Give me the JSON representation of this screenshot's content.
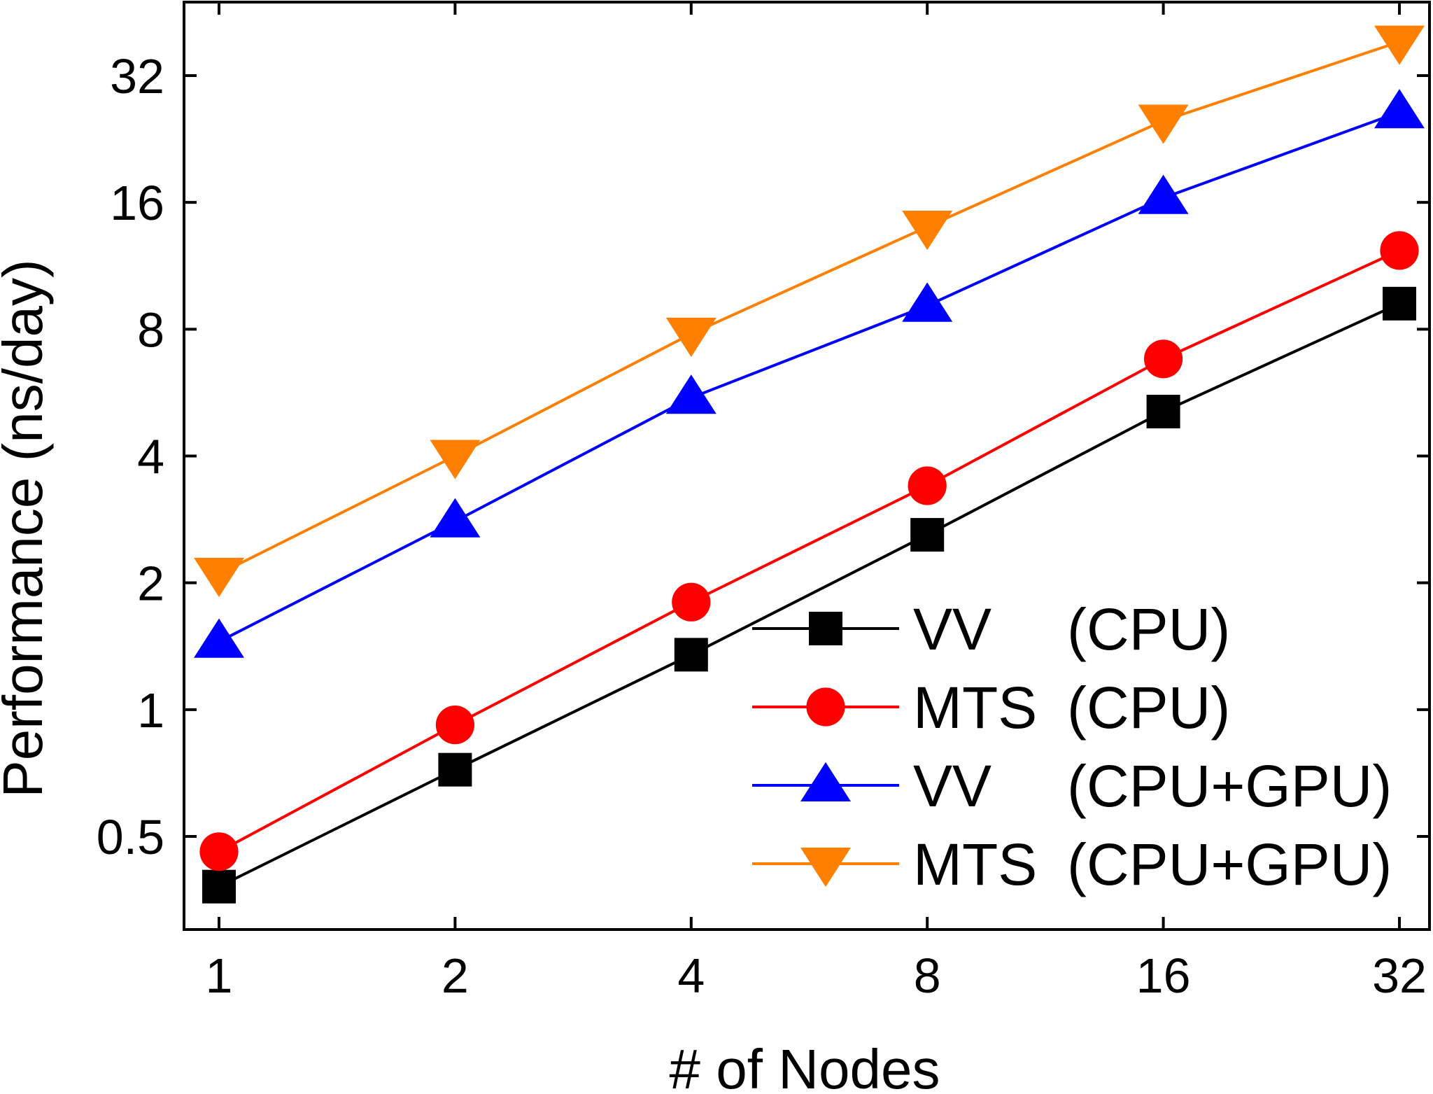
{
  "chart_data": {
    "type": "line",
    "xlabel": "# of Nodes",
    "ylabel": "Performance (ns/day)",
    "x_scale": "log2",
    "y_scale": "log2",
    "xlim": [
      0.9,
      36
    ],
    "ylim": [
      0.37,
      45
    ],
    "x": [
      1,
      2,
      4,
      8,
      16,
      32
    ],
    "x_tick_labels": [
      "1",
      "2",
      "4",
      "8",
      "16",
      "32"
    ],
    "y_ticks": [
      0.5,
      1,
      2,
      4,
      8,
      16,
      32
    ],
    "y_tick_labels": [
      "0.5",
      "1",
      "2",
      "4",
      "8",
      "16",
      "32"
    ],
    "grid": false,
    "legend_position": "bottom-right",
    "series": [
      {
        "name": "VV",
        "device": "(CPU)",
        "color": "#000000",
        "marker": "square",
        "values": [
          0.38,
          0.72,
          1.35,
          2.6,
          5.1,
          9.2
        ]
      },
      {
        "name": "MTS",
        "device": "(CPU)",
        "color": "#ff0000",
        "marker": "circle",
        "values": [
          0.46,
          0.92,
          1.8,
          3.4,
          6.8,
          12.3
        ]
      },
      {
        "name": "VV",
        "device": "(CPU+GPU)",
        "color": "#0000ff",
        "marker": "triangle-up",
        "values": [
          1.45,
          2.8,
          5.5,
          9.1,
          16.4,
          26.2
        ]
      },
      {
        "name": "MTS",
        "device": "(CPU+GPU)",
        "color": "#ff8000",
        "marker": "triangle-down",
        "values": [
          2.1,
          4.0,
          7.8,
          14.0,
          25.0,
          38.5
        ]
      }
    ]
  }
}
